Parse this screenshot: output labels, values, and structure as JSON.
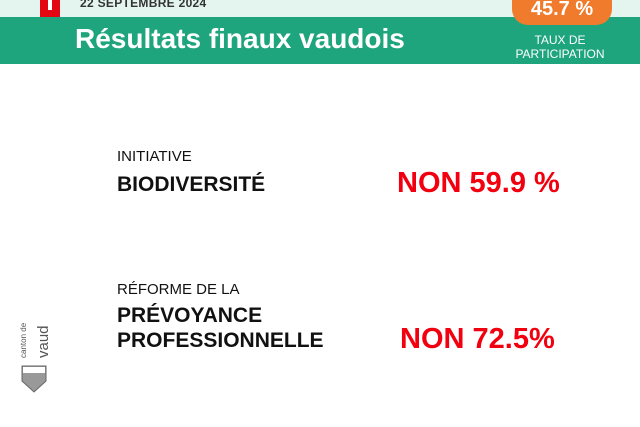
{
  "header": {
    "date": "22 SEPTEMBRE 2024",
    "title": "Résultats finaux vaudois",
    "participation_value": "45.7 %",
    "participation_label_1": "TAUX DE",
    "participation_label_2": "PARTICIPATION"
  },
  "votes": [
    {
      "line1": "INITIATIVE",
      "line2": "BIODIVERSITÉ",
      "result_word": "NON",
      "result_value": "59.9 %"
    },
    {
      "line1": "RÉFORME DE LA",
      "line2": "PRÉVOYANCE",
      "line3": "PROFESSIONNELLE",
      "result_word": "NON",
      "result_value": "72.5%"
    }
  ],
  "logo": {
    "text": "canton de vaud"
  },
  "colors": {
    "green": "#1ea57d",
    "orange": "#f07b2c",
    "red": "#f2000f",
    "flag_red": "#e30613"
  }
}
